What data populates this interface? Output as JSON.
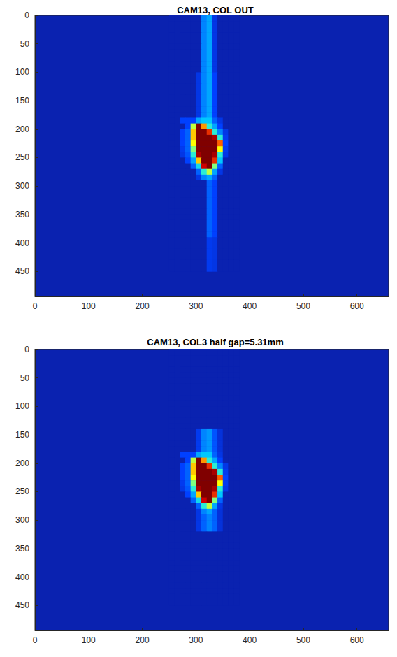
{
  "chart_data": [
    {
      "type": "heatmap",
      "title": "CAM13, COL OUT",
      "xlim": [
        0,
        659
      ],
      "ylim": [
        0,
        494
      ],
      "xticks": [
        0,
        100,
        200,
        300,
        400,
        500,
        600
      ],
      "yticks": [
        0,
        50,
        100,
        150,
        200,
        250,
        300,
        350,
        400,
        450
      ],
      "grid": false,
      "vlim": [
        0,
        100
      ],
      "cell_x0": 250,
      "cell_y0": 0,
      "cell_step": 10,
      "cells": [
        [
          0,
          0,
          0,
          0,
          0,
          0,
          25,
          30,
          10,
          0,
          0,
          0,
          0
        ],
        [
          0,
          0,
          0,
          0,
          0,
          0,
          25,
          30,
          10,
          0,
          0,
          0,
          0
        ],
        [
          0,
          0,
          0,
          0,
          0,
          0,
          25,
          30,
          10,
          0,
          0,
          0,
          0
        ],
        [
          0,
          0,
          0,
          0,
          0,
          0,
          25,
          30,
          10,
          0,
          0,
          0,
          0
        ],
        [
          0,
          0,
          0,
          0,
          0,
          0,
          25,
          30,
          10,
          0,
          0,
          0,
          0
        ],
        [
          0,
          0,
          0,
          0,
          0,
          0,
          25,
          30,
          10,
          0,
          0,
          0,
          0
        ],
        [
          0,
          0,
          0,
          0,
          0,
          0,
          25,
          30,
          10,
          0,
          0,
          0,
          0
        ],
        [
          0,
          0,
          0,
          0,
          0,
          0,
          25,
          30,
          10,
          0,
          0,
          0,
          0
        ],
        [
          0,
          0,
          0,
          0,
          0,
          0,
          25,
          30,
          10,
          0,
          0,
          0,
          0
        ],
        [
          0,
          0,
          0,
          0,
          0,
          0,
          25,
          30,
          10,
          0,
          0,
          0,
          0
        ],
        [
          0,
          0,
          0,
          0,
          0,
          10,
          25,
          30,
          15,
          0,
          0,
          0,
          0
        ],
        [
          0,
          0,
          0,
          0,
          0,
          10,
          25,
          30,
          15,
          0,
          0,
          0,
          0
        ],
        [
          0,
          0,
          0,
          0,
          0,
          10,
          25,
          30,
          15,
          0,
          0,
          0,
          0
        ],
        [
          0,
          0,
          0,
          0,
          0,
          10,
          25,
          30,
          15,
          0,
          0,
          0,
          0
        ],
        [
          0,
          0,
          0,
          0,
          0,
          10,
          25,
          30,
          15,
          0,
          0,
          0,
          0
        ],
        [
          0,
          0,
          0,
          0,
          0,
          10,
          25,
          30,
          15,
          0,
          0,
          0,
          0
        ],
        [
          0,
          0,
          0,
          0,
          0,
          10,
          25,
          30,
          15,
          0,
          0,
          0,
          0
        ],
        [
          0,
          0,
          0,
          0,
          0,
          10,
          25,
          30,
          15,
          0,
          0,
          0,
          0
        ],
        [
          0,
          0,
          15,
          15,
          15,
          30,
          35,
          35,
          20,
          10,
          0,
          0,
          0
        ],
        [
          0,
          0,
          0,
          15,
          60,
          100,
          75,
          45,
          30,
          15,
          0,
          0,
          0
        ],
        [
          0,
          0,
          15,
          20,
          70,
          100,
          100,
          85,
          45,
          25,
          10,
          0,
          0
        ],
        [
          0,
          0,
          15,
          20,
          70,
          100,
          100,
          100,
          95,
          45,
          12,
          0,
          0
        ],
        [
          0,
          0,
          15,
          20,
          65,
          100,
          100,
          100,
          100,
          80,
          15,
          0,
          0
        ],
        [
          0,
          0,
          12,
          20,
          55,
          100,
          100,
          100,
          100,
          65,
          12,
          0,
          0
        ],
        [
          0,
          0,
          10,
          18,
          45,
          95,
          100,
          100,
          95,
          45,
          10,
          0,
          0
        ],
        [
          0,
          0,
          0,
          15,
          30,
          70,
          100,
          100,
          85,
          35,
          0,
          0,
          0
        ],
        [
          0,
          0,
          0,
          0,
          20,
          40,
          90,
          100,
          55,
          20,
          0,
          0,
          0
        ],
        [
          0,
          0,
          0,
          0,
          0,
          20,
          45,
          60,
          30,
          10,
          0,
          0,
          0
        ],
        [
          0,
          0,
          0,
          0,
          0,
          10,
          25,
          30,
          20,
          0,
          0,
          0,
          0
        ],
        [
          0,
          0,
          0,
          0,
          0,
          0,
          0,
          20,
          15,
          0,
          0,
          0,
          0
        ],
        [
          0,
          0,
          0,
          0,
          0,
          0,
          0,
          20,
          15,
          0,
          0,
          0,
          0
        ],
        [
          0,
          0,
          0,
          0,
          0,
          0,
          0,
          20,
          15,
          0,
          0,
          0,
          0
        ],
        [
          0,
          0,
          0,
          0,
          0,
          0,
          0,
          20,
          15,
          0,
          0,
          0,
          0
        ],
        [
          0,
          0,
          0,
          0,
          0,
          0,
          0,
          20,
          15,
          0,
          0,
          0,
          0
        ],
        [
          0,
          0,
          0,
          0,
          0,
          0,
          0,
          20,
          15,
          0,
          0,
          0,
          0
        ],
        [
          0,
          0,
          0,
          0,
          0,
          0,
          0,
          20,
          15,
          0,
          0,
          0,
          0
        ],
        [
          0,
          0,
          0,
          0,
          0,
          0,
          0,
          20,
          15,
          0,
          0,
          0,
          0
        ],
        [
          0,
          0,
          0,
          0,
          0,
          0,
          0,
          20,
          15,
          0,
          0,
          0,
          0
        ],
        [
          0,
          0,
          0,
          0,
          0,
          0,
          0,
          20,
          15,
          0,
          0,
          0,
          0
        ],
        [
          0,
          0,
          0,
          0,
          0,
          0,
          0,
          12,
          10,
          0,
          0,
          0,
          0
        ],
        [
          0,
          0,
          0,
          0,
          0,
          0,
          0,
          12,
          10,
          0,
          0,
          0,
          0
        ],
        [
          0,
          0,
          0,
          0,
          0,
          0,
          0,
          12,
          10,
          0,
          0,
          0,
          0
        ],
        [
          0,
          0,
          0,
          0,
          0,
          0,
          0,
          12,
          10,
          0,
          0,
          0,
          0
        ],
        [
          0,
          0,
          0,
          0,
          0,
          0,
          0,
          12,
          10,
          0,
          0,
          0,
          0
        ],
        [
          0,
          0,
          0,
          0,
          0,
          0,
          0,
          12,
          10,
          0,
          0,
          0,
          0
        ]
      ]
    },
    {
      "type": "heatmap",
      "title": "CAM13, COL3 half gap=5.31mm",
      "xlim": [
        0,
        659
      ],
      "ylim": [
        0,
        494
      ],
      "xticks": [
        0,
        100,
        200,
        300,
        400,
        500,
        600
      ],
      "yticks": [
        0,
        50,
        100,
        150,
        200,
        250,
        300,
        350,
        400,
        450
      ],
      "grid": false,
      "vlim": [
        0,
        100
      ],
      "cell_x0": 250,
      "cell_y0": 0,
      "cell_step": 10,
      "cells": [
        [
          0,
          0,
          0,
          0,
          0,
          0,
          0,
          0,
          0,
          0,
          0,
          0,
          0
        ],
        [
          0,
          0,
          0,
          0,
          0,
          0,
          0,
          0,
          0,
          0,
          0,
          0,
          0
        ],
        [
          0,
          0,
          0,
          0,
          0,
          0,
          0,
          0,
          0,
          0,
          0,
          0,
          0
        ],
        [
          0,
          0,
          0,
          0,
          0,
          0,
          0,
          0,
          0,
          0,
          0,
          0,
          0
        ],
        [
          0,
          0,
          0,
          0,
          0,
          0,
          0,
          0,
          0,
          0,
          0,
          0,
          0
        ],
        [
          0,
          0,
          0,
          0,
          0,
          0,
          0,
          0,
          0,
          0,
          0,
          0,
          0
        ],
        [
          0,
          0,
          0,
          0,
          0,
          0,
          0,
          0,
          0,
          0,
          0,
          0,
          0
        ],
        [
          0,
          0,
          0,
          0,
          0,
          0,
          0,
          0,
          0,
          0,
          0,
          0,
          0
        ],
        [
          0,
          0,
          0,
          0,
          0,
          0,
          0,
          0,
          0,
          0,
          0,
          0,
          0
        ],
        [
          0,
          0,
          0,
          0,
          0,
          0,
          0,
          0,
          0,
          0,
          0,
          0,
          0
        ],
        [
          0,
          0,
          0,
          0,
          0,
          0,
          0,
          0,
          0,
          0,
          0,
          0,
          0
        ],
        [
          0,
          0,
          0,
          0,
          0,
          0,
          0,
          0,
          0,
          0,
          0,
          0,
          0
        ],
        [
          0,
          0,
          0,
          0,
          0,
          0,
          0,
          0,
          0,
          0,
          0,
          0,
          0
        ],
        [
          0,
          0,
          0,
          0,
          0,
          0,
          0,
          0,
          0,
          0,
          0,
          0,
          0
        ],
        [
          0,
          0,
          0,
          0,
          0,
          12,
          25,
          28,
          18,
          8,
          0,
          0,
          0
        ],
        [
          0,
          0,
          0,
          0,
          0,
          12,
          25,
          28,
          18,
          8,
          0,
          0,
          0
        ],
        [
          0,
          0,
          0,
          0,
          0,
          12,
          25,
          28,
          18,
          8,
          0,
          0,
          0
        ],
        [
          0,
          0,
          0,
          0,
          0,
          12,
          25,
          28,
          18,
          8,
          0,
          0,
          0
        ],
        [
          0,
          0,
          15,
          15,
          15,
          30,
          35,
          35,
          20,
          10,
          0,
          0,
          0
        ],
        [
          0,
          0,
          0,
          15,
          60,
          100,
          75,
          45,
          30,
          15,
          0,
          0,
          0
        ],
        [
          0,
          0,
          15,
          20,
          70,
          100,
          100,
          85,
          45,
          25,
          10,
          0,
          0
        ],
        [
          0,
          0,
          15,
          20,
          70,
          100,
          100,
          100,
          95,
          45,
          12,
          0,
          0
        ],
        [
          0,
          0,
          15,
          20,
          65,
          100,
          100,
          100,
          100,
          80,
          15,
          0,
          0
        ],
        [
          0,
          0,
          12,
          20,
          55,
          100,
          100,
          100,
          100,
          65,
          12,
          0,
          0
        ],
        [
          0,
          0,
          10,
          18,
          45,
          95,
          100,
          100,
          95,
          45,
          10,
          0,
          0
        ],
        [
          0,
          0,
          0,
          15,
          30,
          70,
          100,
          100,
          85,
          35,
          0,
          0,
          0
        ],
        [
          0,
          0,
          0,
          0,
          20,
          40,
          90,
          100,
          55,
          20,
          0,
          0,
          0
        ],
        [
          0,
          0,
          0,
          0,
          0,
          20,
          45,
          60,
          30,
          10,
          0,
          0,
          0
        ],
        [
          0,
          0,
          0,
          0,
          0,
          10,
          25,
          30,
          20,
          8,
          0,
          0,
          0
        ],
        [
          0,
          0,
          0,
          0,
          0,
          10,
          20,
          25,
          20,
          8,
          0,
          0,
          0
        ],
        [
          0,
          0,
          0,
          0,
          0,
          10,
          20,
          25,
          20,
          8,
          0,
          0,
          0
        ],
        [
          0,
          0,
          0,
          0,
          0,
          10,
          20,
          25,
          20,
          8,
          0,
          0,
          0
        ],
        [
          0,
          0,
          0,
          0,
          0,
          0,
          0,
          0,
          0,
          0,
          0,
          0,
          0
        ],
        [
          0,
          0,
          0,
          0,
          0,
          0,
          0,
          0,
          0,
          0,
          0,
          0,
          0
        ],
        [
          0,
          0,
          0,
          0,
          0,
          0,
          0,
          0,
          0,
          0,
          0,
          0,
          0
        ],
        [
          0,
          0,
          0,
          0,
          0,
          0,
          0,
          0,
          0,
          0,
          0,
          0,
          0
        ],
        [
          0,
          0,
          0,
          0,
          0,
          0,
          0,
          0,
          0,
          0,
          0,
          0,
          0
        ],
        [
          0,
          0,
          0,
          0,
          0,
          0,
          0,
          0,
          0,
          0,
          0,
          0,
          0
        ],
        [
          0,
          0,
          0,
          0,
          0,
          0,
          0,
          0,
          0,
          0,
          0,
          0,
          0
        ],
        [
          0,
          0,
          0,
          0,
          0,
          0,
          0,
          0,
          0,
          0,
          0,
          0,
          0
        ],
        [
          0,
          0,
          0,
          0,
          0,
          0,
          0,
          0,
          0,
          0,
          0,
          0,
          0
        ],
        [
          0,
          0,
          0,
          0,
          0,
          0,
          0,
          0,
          0,
          0,
          0,
          0,
          0
        ],
        [
          0,
          0,
          0,
          0,
          0,
          0,
          0,
          0,
          0,
          0,
          0,
          0,
          0
        ],
        [
          0,
          0,
          0,
          0,
          0,
          0,
          0,
          0,
          0,
          0,
          0,
          0,
          0
        ],
        [
          0,
          0,
          0,
          0,
          0,
          0,
          0,
          0,
          0,
          0,
          0,
          0,
          0
        ]
      ]
    }
  ]
}
